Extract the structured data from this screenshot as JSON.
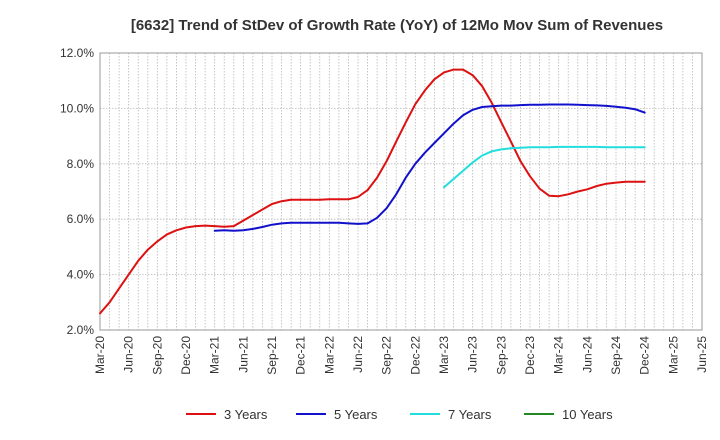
{
  "chart_data": {
    "type": "line",
    "title": "[6632]  Trend of StDev of Growth Rate (YoY) of 12Mo Mov Sum of Revenues",
    "xlabel": "",
    "ylabel": "",
    "ylim": [
      2.0,
      12.0
    ],
    "y_ticks": [
      "2.0%",
      "4.0%",
      "6.0%",
      "8.0%",
      "10.0%",
      "12.0%"
    ],
    "x_tick_labels": [
      "Mar-20",
      "Jun-20",
      "Sep-20",
      "Dec-20",
      "Mar-21",
      "Jun-21",
      "Sep-21",
      "Dec-21",
      "Mar-22",
      "Jun-22",
      "Sep-22",
      "Dec-22",
      "Mar-23",
      "Jun-23",
      "Sep-23",
      "Dec-23",
      "Mar-24",
      "Jun-24",
      "Sep-24",
      "Dec-24",
      "Mar-25",
      "Jun-25"
    ],
    "grid": true,
    "legend_position": "bottom",
    "series": [
      {
        "name": "3 Years",
        "color": "#dd1111",
        "values": [
          [
            0,
            2.6
          ],
          [
            1,
            3.0
          ],
          [
            2,
            3.5
          ],
          [
            3,
            4.0
          ],
          [
            4,
            4.5
          ],
          [
            5,
            4.9
          ],
          [
            6,
            5.2
          ],
          [
            7,
            5.45
          ],
          [
            8,
            5.6
          ],
          [
            9,
            5.7
          ],
          [
            10,
            5.75
          ],
          [
            11,
            5.77
          ],
          [
            12,
            5.75
          ],
          [
            13,
            5.73
          ],
          [
            14,
            5.75
          ],
          [
            15,
            5.95
          ],
          [
            16,
            6.15
          ],
          [
            17,
            6.35
          ],
          [
            18,
            6.55
          ],
          [
            19,
            6.65
          ],
          [
            20,
            6.7
          ],
          [
            21,
            6.7
          ],
          [
            22,
            6.7
          ],
          [
            23,
            6.7
          ],
          [
            24,
            6.72
          ],
          [
            25,
            6.72
          ],
          [
            26,
            6.72
          ],
          [
            27,
            6.8
          ],
          [
            28,
            7.05
          ],
          [
            29,
            7.5
          ],
          [
            30,
            8.1
          ],
          [
            31,
            8.8
          ],
          [
            32,
            9.5
          ],
          [
            33,
            10.15
          ],
          [
            34,
            10.65
          ],
          [
            35,
            11.05
          ],
          [
            36,
            11.3
          ],
          [
            37,
            11.4
          ],
          [
            38,
            11.4
          ],
          [
            39,
            11.2
          ],
          [
            40,
            10.8
          ],
          [
            41,
            10.2
          ],
          [
            42,
            9.5
          ],
          [
            43,
            8.8
          ],
          [
            44,
            8.1
          ],
          [
            45,
            7.55
          ],
          [
            46,
            7.1
          ],
          [
            47,
            6.85
          ],
          [
            48,
            6.83
          ],
          [
            49,
            6.9
          ],
          [
            50,
            7.0
          ],
          [
            51,
            7.08
          ],
          [
            52,
            7.2
          ],
          [
            53,
            7.28
          ],
          [
            54,
            7.32
          ],
          [
            55,
            7.35
          ],
          [
            56,
            7.35
          ],
          [
            57,
            7.35
          ]
        ]
      },
      {
        "name": "5 Years",
        "color": "#1111cc",
        "values": [
          [
            12,
            5.58
          ],
          [
            13,
            5.6
          ],
          [
            14,
            5.58
          ],
          [
            15,
            5.6
          ],
          [
            16,
            5.65
          ],
          [
            17,
            5.72
          ],
          [
            18,
            5.8
          ],
          [
            19,
            5.85
          ],
          [
            20,
            5.87
          ],
          [
            21,
            5.87
          ],
          [
            22,
            5.87
          ],
          [
            23,
            5.87
          ],
          [
            24,
            5.87
          ],
          [
            25,
            5.87
          ],
          [
            26,
            5.85
          ],
          [
            27,
            5.83
          ],
          [
            28,
            5.85
          ],
          [
            29,
            6.05
          ],
          [
            30,
            6.4
          ],
          [
            31,
            6.9
          ],
          [
            32,
            7.5
          ],
          [
            33,
            8.0
          ],
          [
            34,
            8.4
          ],
          [
            35,
            8.75
          ],
          [
            36,
            9.1
          ],
          [
            37,
            9.45
          ],
          [
            38,
            9.75
          ],
          [
            39,
            9.95
          ],
          [
            40,
            10.05
          ],
          [
            41,
            10.08
          ],
          [
            42,
            10.1
          ],
          [
            43,
            10.1
          ],
          [
            44,
            10.12
          ],
          [
            45,
            10.13
          ],
          [
            46,
            10.13
          ],
          [
            47,
            10.14
          ],
          [
            48,
            10.14
          ],
          [
            49,
            10.14
          ],
          [
            50,
            10.13
          ],
          [
            51,
            10.12
          ],
          [
            52,
            10.11
          ],
          [
            53,
            10.09
          ],
          [
            54,
            10.06
          ],
          [
            55,
            10.02
          ],
          [
            56,
            9.97
          ],
          [
            57,
            9.85
          ]
        ]
      },
      {
        "name": "7 Years",
        "color": "#22dddd",
        "values": [
          [
            36,
            7.15
          ],
          [
            37,
            7.45
          ],
          [
            38,
            7.75
          ],
          [
            39,
            8.05
          ],
          [
            40,
            8.3
          ],
          [
            41,
            8.45
          ],
          [
            42,
            8.52
          ],
          [
            43,
            8.56
          ],
          [
            44,
            8.58
          ],
          [
            45,
            8.6
          ],
          [
            46,
            8.6
          ],
          [
            47,
            8.6
          ],
          [
            48,
            8.61
          ],
          [
            49,
            8.61
          ],
          [
            50,
            8.61
          ],
          [
            51,
            8.61
          ],
          [
            52,
            8.61
          ],
          [
            53,
            8.6
          ],
          [
            54,
            8.6
          ],
          [
            55,
            8.6
          ],
          [
            56,
            8.6
          ],
          [
            57,
            8.6
          ]
        ]
      },
      {
        "name": "10 Years",
        "color": "#228822",
        "values": []
      }
    ]
  }
}
